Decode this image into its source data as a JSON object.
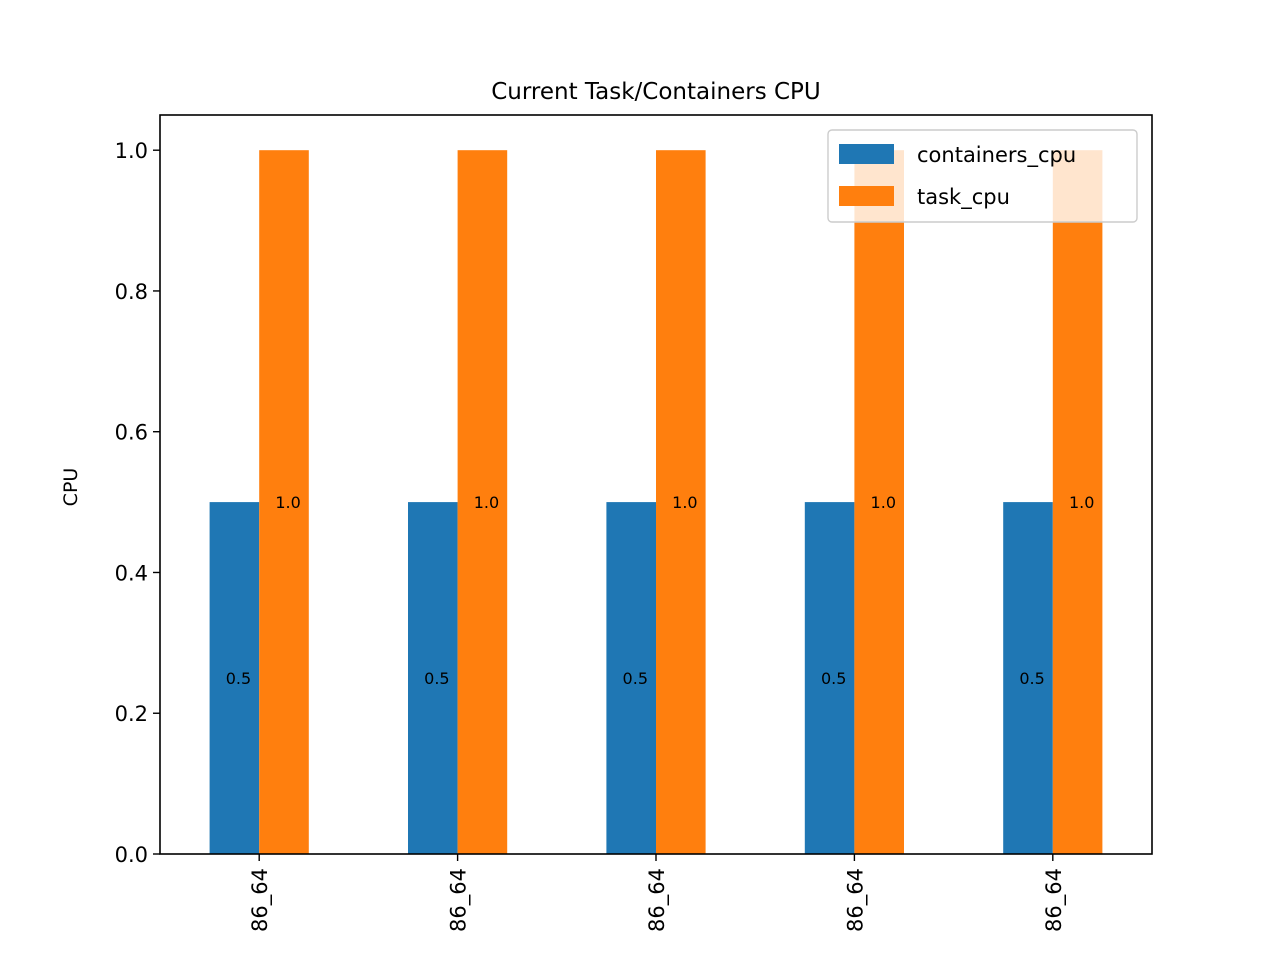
{
  "chart_data": {
    "type": "bar",
    "title": "Current Task/Containers CPU",
    "xlabel": "",
    "ylabel": "CPU",
    "categories": [
      "86_64",
      "86_64",
      "86_64",
      "86_64",
      "86_64"
    ],
    "series": [
      {
        "name": "containers_cpu",
        "color": "#1f77b4",
        "values": [
          0.5,
          0.5,
          0.5,
          0.5,
          0.5
        ],
        "labels": [
          "0.5",
          "0.5",
          "0.5",
          "0.5",
          "0.5"
        ]
      },
      {
        "name": "task_cpu",
        "color": "#ff7f0e",
        "values": [
          1.0,
          1.0,
          1.0,
          1.0,
          1.0
        ],
        "labels": [
          "1.0",
          "1.0",
          "1.0",
          "1.0",
          "1.0"
        ]
      }
    ],
    "ylim": [
      0,
      1.05
    ],
    "yticks": [
      0.0,
      0.2,
      0.4,
      0.6,
      0.8,
      1.0
    ],
    "ytick_labels": [
      "0.0",
      "0.2",
      "0.4",
      "0.6",
      "0.8",
      "1.0"
    ],
    "grid": false,
    "legend_position": "top-right"
  }
}
